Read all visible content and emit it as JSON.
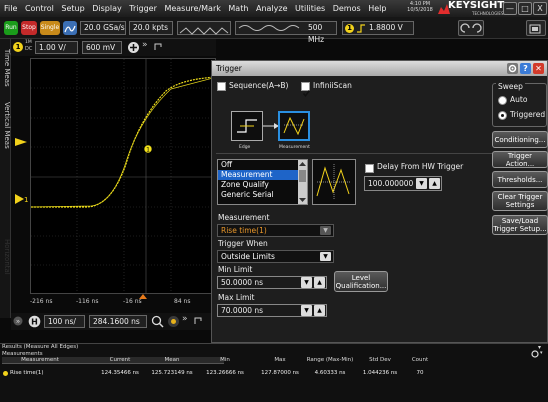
{
  "menubar": {
    "items": [
      "File",
      "Control",
      "Setup",
      "Display",
      "Trigger",
      "Measure/Mark",
      "Math",
      "Analyze",
      "Utilities",
      "Demos",
      "Help"
    ],
    "time": "4:10 PM",
    "date": "10/5/2018",
    "brand": "KEYSIGHT",
    "brand_sub": "TECHNOLOGIES",
    "window_buttons": [
      "—",
      "□",
      "X"
    ]
  },
  "toolbar": {
    "run_label": "Run",
    "stop_label": "Stop",
    "single_label": "Single",
    "sample_rate": "20.0 GSa/s",
    "memory_depth": "20.0 kpts",
    "bandwidth": "500 MHz",
    "trigger_level": "1.8800 V",
    "colors": {
      "run": "#1a9d1a",
      "stop": "#c42a2a",
      "single": "#c88a1a",
      "accent": "#f2d21b"
    }
  },
  "left_tabs": [
    "Time Meas",
    "Vertical Meas",
    "Horizontal"
  ],
  "channel": {
    "number": "1",
    "coupling": "DC",
    "impedance": "1M",
    "scale": "1.00 V/",
    "offset": "600 mV"
  },
  "scope": {
    "time_labels": [
      "-216 ns",
      "-116 ns",
      "-16 ns",
      "84 ns"
    ],
    "trace_color": "#f2e11b"
  },
  "horizontal": {
    "scale": "100 ns/",
    "position": "284.1600 ns"
  },
  "dialog": {
    "title": "Trigger",
    "sequence_label": "Sequence(A→B)",
    "sequence_checked": false,
    "infiniscan_label": "InfiniiScan",
    "infiniscan_checked": true,
    "edge_label": "Edge",
    "measurement_icon_label": "Measurement",
    "type_list": [
      "Off",
      "Measurement",
      "Zone Qualify",
      "Generic Serial"
    ],
    "type_selected": "Measurement",
    "delay_label": "Delay From HW Trigger",
    "delay_value": "100.000000 ns",
    "measurement_label": "Measurement",
    "measurement_value": "Rise time(1)",
    "trigger_when_label": "Trigger When",
    "trigger_when_value": "Outside Limits",
    "min_limit_label": "Min Limit",
    "min_limit_value": "50.0000 ns",
    "max_limit_label": "Max Limit",
    "max_limit_value": "70.0000 ns",
    "level_button": "Level Qualification...",
    "sweep_label": "Sweep",
    "sweep_options": [
      "Auto",
      "Triggered"
    ],
    "sweep_selected": "Triggered",
    "buttons": [
      "Conditioning...",
      "Trigger Action...",
      "Thresholds...",
      "Clear Trigger Settings",
      "Save/Load Trigger Setup..."
    ]
  },
  "results": {
    "title": "Results  (Measure All Edges)",
    "tab": "Measurements",
    "headers": [
      "Measurement",
      "Current",
      "Mean",
      "Min",
      "Max",
      "Range (Max-Min)",
      "Std Dev",
      "Count"
    ],
    "rows": [
      [
        "Rise time(1)",
        "124.35466 ns",
        "125.723149 ns",
        "123.26666 ns",
        "127.87000 ns",
        "4.60333 ns",
        "1.044236 ns",
        "70"
      ]
    ]
  }
}
